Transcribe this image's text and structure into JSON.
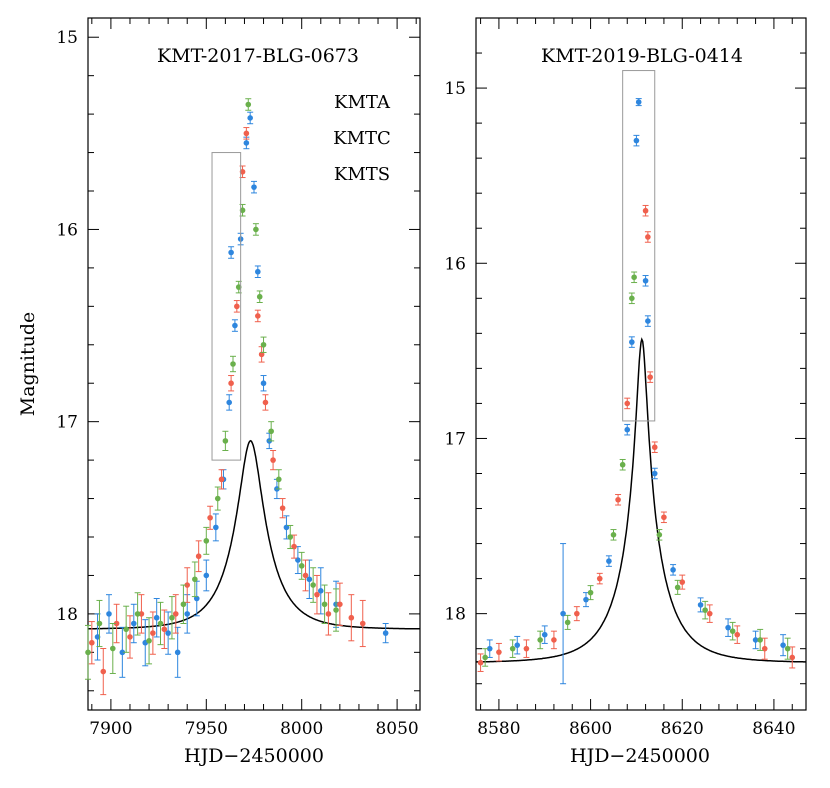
{
  "colors": {
    "KMTA": "#2e86de",
    "KMTC": "#f0604d",
    "KMTS": "#6ab04c",
    "model": "#000000",
    "box": "#999999"
  },
  "chart_data": [
    {
      "type": "scatter",
      "title": "KMT-2017-BLG-0673",
      "xlabel": "HJD−2450000",
      "ylabel": "Magnitude",
      "xlim": [
        7888,
        8062
      ],
      "ylim": [
        18.5,
        14.9
      ],
      "y_inverted": true,
      "xticks": [
        7900,
        7950,
        8000,
        8050
      ],
      "yticks": [
        15,
        16,
        17,
        18
      ],
      "legend": [
        "KMTA",
        "KMTC",
        "KMTS"
      ],
      "legend_placement": "top-right",
      "model": {
        "t0": 7973.2,
        "u0": 0.3,
        "tE": 19.0,
        "base": 18.08,
        "fs": 0.6
      },
      "highlight_box": {
        "x": [
          7953,
          7968
        ],
        "y": [
          15.6,
          17.2
        ]
      },
      "series": [
        {
          "name": "KMTA",
          "points": [
            [
              7893,
              18.12,
              0.12
            ],
            [
              7899,
              18.0,
              0.1
            ],
            [
              7906,
              18.2,
              0.13
            ],
            [
              7912,
              18.05,
              0.1
            ],
            [
              7918,
              18.15,
              0.12
            ],
            [
              7924,
              18.02,
              0.1
            ],
            [
              7930,
              18.1,
              0.11
            ],
            [
              7935,
              18.2,
              0.13
            ],
            [
              7940,
              18.0,
              0.1
            ],
            [
              7945,
              17.92,
              0.09
            ],
            [
              7950,
              17.8,
              0.08
            ],
            [
              7955,
              17.55,
              0.07
            ],
            [
              7959,
              17.3,
              0.05
            ],
            [
              7962,
              16.9,
              0.04
            ],
            [
              7963,
              16.12,
              0.03
            ],
            [
              7965,
              16.5,
              0.03
            ],
            [
              7968,
              16.05,
              0.03
            ],
            [
              7971,
              15.55,
              0.03
            ],
            [
              7973,
              15.42,
              0.03
            ],
            [
              7975,
              15.78,
              0.03
            ],
            [
              7977,
              16.22,
              0.03
            ],
            [
              7980,
              16.8,
              0.04
            ],
            [
              7983,
              17.1,
              0.04
            ],
            [
              7987,
              17.35,
              0.05
            ],
            [
              7992,
              17.55,
              0.06
            ],
            [
              7998,
              17.72,
              0.07
            ],
            [
              8004,
              17.82,
              0.1
            ],
            [
              8010,
              17.88,
              0.12
            ],
            [
              8018,
              17.95,
              0.12
            ],
            [
              8044,
              18.1,
              0.05
            ]
          ]
        },
        {
          "name": "KMTC",
          "points": [
            [
              7890,
              18.15,
              0.11
            ],
            [
              7896,
              18.3,
              0.12
            ],
            [
              7903,
              18.05,
              0.1
            ],
            [
              7910,
              18.12,
              0.11
            ],
            [
              7916,
              18.0,
              0.1
            ],
            [
              7922,
              18.1,
              0.11
            ],
            [
              7928,
              18.08,
              0.1
            ],
            [
              7934,
              18.0,
              0.1
            ],
            [
              7940,
              17.85,
              0.09
            ],
            [
              7946,
              17.7,
              0.08
            ],
            [
              7952,
              17.5,
              0.06
            ],
            [
              7958,
              17.3,
              0.05
            ],
            [
              7963,
              16.8,
              0.04
            ],
            [
              7966,
              16.4,
              0.03
            ],
            [
              7969,
              15.7,
              0.03
            ],
            [
              7971,
              15.5,
              0.03
            ],
            [
              7977,
              16.45,
              0.03
            ],
            [
              7979,
              16.65,
              0.04
            ],
            [
              7981,
              16.9,
              0.04
            ],
            [
              7985,
              17.2,
              0.05
            ],
            [
              7990,
              17.45,
              0.05
            ],
            [
              7996,
              17.65,
              0.06
            ],
            [
              8002,
              17.8,
              0.08
            ],
            [
              8008,
              17.9,
              0.1
            ],
            [
              8014,
              18.0,
              0.11
            ],
            [
              8020,
              17.95,
              0.11
            ],
            [
              8026,
              18.02,
              0.12
            ],
            [
              8032,
              18.05,
              0.12
            ]
          ]
        },
        {
          "name": "KMTS",
          "points": [
            [
              7888,
              18.2,
              0.14
            ],
            [
              7894,
              18.05,
              0.12
            ],
            [
              7901,
              18.18,
              0.13
            ],
            [
              7908,
              18.08,
              0.12
            ],
            [
              7914,
              18.0,
              0.11
            ],
            [
              7920,
              18.14,
              0.12
            ],
            [
              7926,
              18.05,
              0.11
            ],
            [
              7932,
              18.02,
              0.11
            ],
            [
              7938,
              17.95,
              0.1
            ],
            [
              7944,
              17.82,
              0.09
            ],
            [
              7950,
              17.62,
              0.07
            ],
            [
              7956,
              17.4,
              0.06
            ],
            [
              7960,
              17.1,
              0.05
            ],
            [
              7964,
              16.7,
              0.04
            ],
            [
              7967,
              16.3,
              0.03
            ],
            [
              7969,
              15.9,
              0.03
            ],
            [
              7972,
              15.35,
              0.03
            ],
            [
              7976,
              16.0,
              0.03
            ],
            [
              7978,
              16.35,
              0.03
            ],
            [
              7980,
              16.6,
              0.04
            ],
            [
              7984,
              17.05,
              0.05
            ],
            [
              7988,
              17.3,
              0.05
            ],
            [
              7994,
              17.6,
              0.06
            ],
            [
              8000,
              17.75,
              0.07
            ],
            [
              8006,
              17.85,
              0.09
            ],
            [
              8012,
              17.95,
              0.1
            ],
            [
              8018,
              17.98,
              0.11
            ]
          ]
        }
      ]
    },
    {
      "type": "scatter",
      "title": "KMT-2019-BLG-0414",
      "xlabel": "HJD−2450000",
      "ylabel": "",
      "xlim": [
        8575,
        8647
      ],
      "ylim": [
        18.55,
        14.6
      ],
      "y_inverted": true,
      "xticks": [
        8580,
        8600,
        8620,
        8640
      ],
      "yticks": [
        15,
        16,
        17,
        18
      ],
      "model": {
        "t0": 8611.2,
        "u0": 0.11,
        "tE": 9.5,
        "base": 18.28,
        "fs": 0.55
      },
      "highlight_box": {
        "x": [
          8607,
          8614
        ],
        "y": [
          14.9,
          16.9
        ]
      },
      "series": [
        {
          "name": "KMTA",
          "points": [
            [
              8578,
              18.2,
              0.05
            ],
            [
              8584,
              18.18,
              0.05
            ],
            [
              8590,
              18.12,
              0.05
            ],
            [
              8594,
              18.0,
              0.4
            ],
            [
              8599,
              17.92,
              0.04
            ],
            [
              8604,
              17.7,
              0.03
            ],
            [
              8608,
              16.95,
              0.03
            ],
            [
              8609,
              16.45,
              0.03
            ],
            [
              8610,
              15.3,
              0.03
            ],
            [
              8610.5,
              15.08,
              0.02
            ],
            [
              8612,
              16.1,
              0.03
            ],
            [
              8612.5,
              16.33,
              0.03
            ],
            [
              8614,
              17.2,
              0.03
            ],
            [
              8618,
              17.75,
              0.03
            ],
            [
              8624,
              17.95,
              0.04
            ],
            [
              8630,
              18.08,
              0.05
            ],
            [
              8636,
              18.15,
              0.05
            ],
            [
              8642,
              18.18,
              0.06
            ]
          ]
        },
        {
          "name": "KMTC",
          "points": [
            [
              8576,
              18.28,
              0.05
            ],
            [
              8580,
              18.22,
              0.05
            ],
            [
              8586,
              18.2,
              0.05
            ],
            [
              8592,
              18.15,
              0.05
            ],
            [
              8597,
              18.0,
              0.04
            ],
            [
              8602,
              17.8,
              0.03
            ],
            [
              8606,
              17.35,
              0.03
            ],
            [
              8608,
              16.8,
              0.03
            ],
            [
              8612,
              15.7,
              0.03
            ],
            [
              8612.5,
              15.85,
              0.03
            ],
            [
              8613,
              16.65,
              0.03
            ],
            [
              8614,
              17.05,
              0.03
            ],
            [
              8616,
              17.45,
              0.03
            ],
            [
              8620,
              17.82,
              0.04
            ],
            [
              8626,
              18.0,
              0.05
            ],
            [
              8632,
              18.12,
              0.05
            ],
            [
              8638,
              18.2,
              0.06
            ],
            [
              8644,
              18.25,
              0.06
            ]
          ]
        },
        {
          "name": "KMTS",
          "points": [
            [
              8577,
              18.25,
              0.05
            ],
            [
              8583,
              18.2,
              0.05
            ],
            [
              8589,
              18.15,
              0.05
            ],
            [
              8595,
              18.05,
              0.04
            ],
            [
              8600,
              17.88,
              0.04
            ],
            [
              8605,
              17.55,
              0.03
            ],
            [
              8607,
              17.15,
              0.03
            ],
            [
              8609,
              16.2,
              0.03
            ],
            [
              8609.5,
              16.08,
              0.03
            ],
            [
              8615,
              17.55,
              0.03
            ],
            [
              8619,
              17.85,
              0.04
            ],
            [
              8625,
              17.98,
              0.05
            ],
            [
              8631,
              18.1,
              0.05
            ],
            [
              8637,
              18.15,
              0.06
            ],
            [
              8643,
              18.2,
              0.06
            ]
          ]
        }
      ]
    }
  ]
}
